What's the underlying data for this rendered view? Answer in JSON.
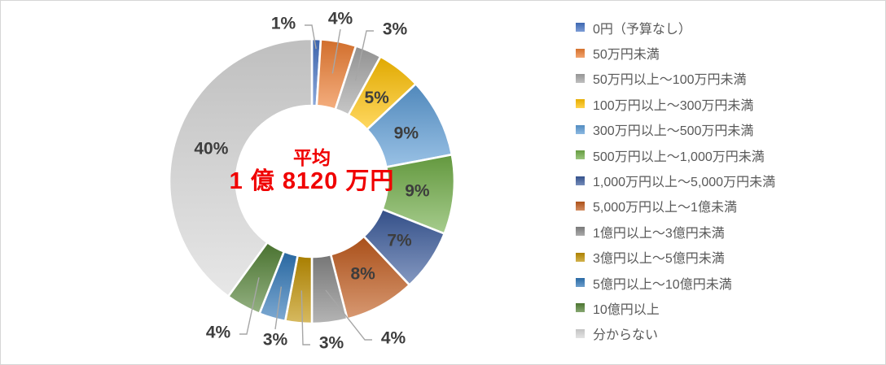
{
  "page": {
    "background": "#ffffff",
    "border_color": "#d6d6d6"
  },
  "chart_data": {
    "type": "pie",
    "subtype": "donut",
    "unit": "%",
    "legend_position": "right",
    "center_label": {
      "line1": "平均",
      "line2": "1 億 8120 万円",
      "color": "#f00000"
    },
    "categories": [
      "0円（予算なし）",
      "50万円未満",
      "50万円以上～100万円未満",
      "100万円以上～300万円未満",
      "300万円以上～500万円未満",
      "500万円以上～1,000万円未満",
      "1,000万円以上～5,000万円未満",
      "5,000万円以上～1億未満",
      "1億円以上～3億円未満",
      "3億円以上～5億円未満",
      "5億円以上～10億円未満",
      "10億円以上",
      "分からない"
    ],
    "values": [
      1,
      4,
      3,
      5,
      9,
      9,
      7,
      8,
      4,
      3,
      3,
      4,
      40
    ],
    "labels": [
      "1%",
      "4%",
      "3%",
      "5%",
      "9%",
      "9%",
      "7%",
      "8%",
      "4%",
      "3%",
      "3%",
      "4%",
      "40%"
    ],
    "colors": [
      "#4472C4",
      "#ED7D31",
      "#A5A5A5",
      "#FFC000",
      "#5B9BD5",
      "#70AD47",
      "#3A5A9B",
      "#C05A1C",
      "#868686",
      "#BF8F00",
      "#2E75B6",
      "#538135",
      "#D9D9D9"
    ],
    "label_color": "#3d3d3d",
    "leader_color": "#a6a6a6"
  }
}
